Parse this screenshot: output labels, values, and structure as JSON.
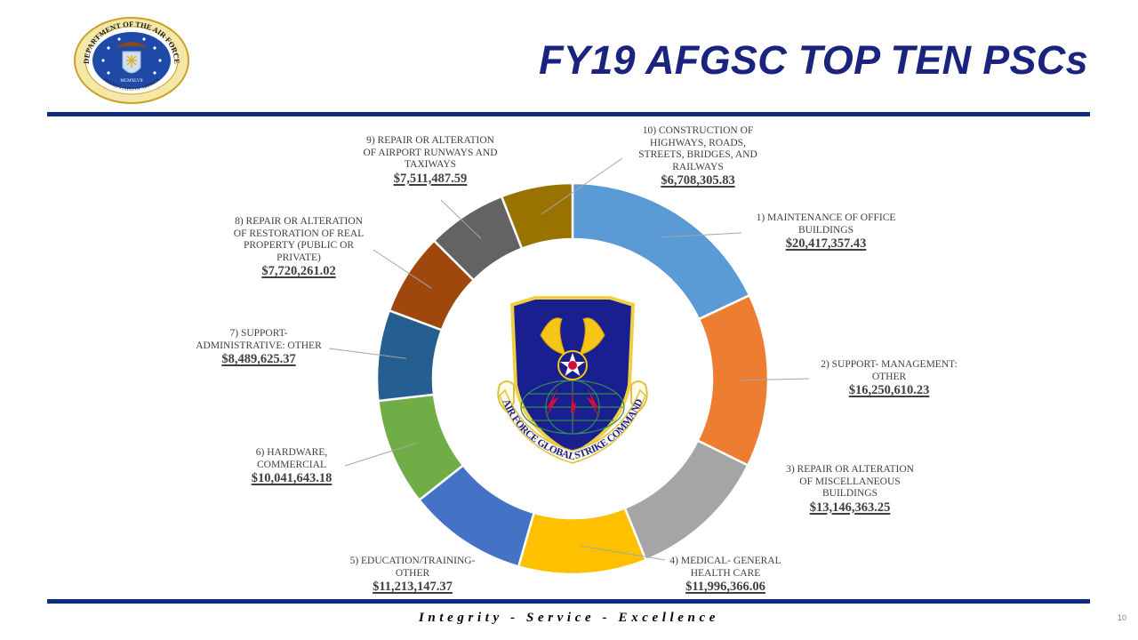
{
  "slide": {
    "title": "FY19 AFGSC TOP TEN PSCs",
    "motto": "Integrity - Service - Excellence",
    "page_number": "10",
    "seal_text": "DEPARTMENT OF THE AIR FORCE",
    "seal_bottom_text": "UNITED STATES OF AMERICA",
    "seal_year": "MCMXLVII",
    "emblem_text": "AIR FORCE GLOBAL STRIKE COMMAND",
    "colors": {
      "title": "#1a237e",
      "rule": "#0f2d7f"
    }
  },
  "chart_data": {
    "type": "pie",
    "subtype": "donut",
    "title": "FY19 AFGSC TOP TEN PSCs",
    "start_angle_deg": 0,
    "direction": "clockwise",
    "categories": [
      "1) MAINTENANCE OF OFFICE BUILDINGS",
      "2) SUPPORT- MANAGEMENT: OTHER",
      "3) REPAIR OR ALTERATION OF MISCELLANEOUS BUILDINGS",
      "4) MEDICAL- GENERAL HEALTH CARE",
      "5) EDUCATION/TRAINING- OTHER",
      "6) HARDWARE, COMMERCIAL",
      "7) SUPPORT- ADMINISTRATIVE: OTHER",
      "8) REPAIR OR ALTERATION OF RESTORATION OF REAL PROPERTY (PUBLIC OR PRIVATE)",
      "9) REPAIR OR ALTERATION OF AIRPORT RUNWAYS AND TAXIWAYS",
      "10) CONSTRUCTION OF HIGHWAYS, ROADS, STREETS, BRIDGES, AND RAILWAYS"
    ],
    "values": [
      20417357.43,
      16250610.23,
      13146363.25,
      11996366.06,
      11213147.37,
      10041643.18,
      8489625.37,
      7720261.02,
      7511487.59,
      6708305.83
    ],
    "value_labels": [
      "$20,417,357.43",
      "$16,250,610.23",
      "$13,146,363.25",
      "$11,996,366.06",
      "$11,213,147.37",
      "$10,041,643.18",
      "$8,489,625.37",
      "$7,720,261.02",
      "$7,511,487.59",
      "$6,708,305.83"
    ],
    "colors": [
      "#5b9bd5",
      "#ed7d31",
      "#a5a5a5",
      "#ffc000",
      "#4472c4",
      "#70ad47",
      "#255e91",
      "#9e480e",
      "#636363",
      "#997300"
    ],
    "legend": "none (data labels with leader lines)",
    "center": [
      644,
      426
    ],
    "outer_radius": 220,
    "inner_radius": 157
  },
  "labels": [
    {
      "name_lines": [
        "1) MAINTENANCE OF OFFICE",
        "BUILDINGS"
      ],
      "amount": "$20,417,357.43"
    },
    {
      "name_lines": [
        "2) SUPPORT- MANAGEMENT:",
        "OTHER"
      ],
      "amount": "$16,250,610.23"
    },
    {
      "name_lines": [
        "3) REPAIR OR ALTERATION",
        "OF MISCELLANEOUS",
        "BUILDINGS"
      ],
      "amount": "$13,146,363.25"
    },
    {
      "name_lines": [
        "4) MEDICAL- GENERAL",
        "HEALTH CARE"
      ],
      "amount": "$11,996,366.06"
    },
    {
      "name_lines": [
        "5) EDUCATION/TRAINING-",
        "OTHER"
      ],
      "amount": "$11,213,147.37"
    },
    {
      "name_lines": [
        "6) HARDWARE,",
        "COMMERCIAL"
      ],
      "amount": "$10,041,643.18"
    },
    {
      "name_lines": [
        "7) SUPPORT-",
        "ADMINISTRATIVE: OTHER"
      ],
      "amount": "$8,489,625.37"
    },
    {
      "name_lines": [
        "8) REPAIR OR ALTERATION",
        "OF RESTORATION OF REAL",
        "PROPERTY (PUBLIC OR",
        "PRIVATE)"
      ],
      "amount": "$7,720,261.02"
    },
    {
      "name_lines": [
        "9) REPAIR OR ALTERATION",
        "OF AIRPORT RUNWAYS AND",
        "TAXIWAYS"
      ],
      "amount": "$7,511,487.59"
    },
    {
      "name_lines": [
        "10) CONSTRUCTION OF",
        "HIGHWAYS, ROADS,",
        "STREETS, BRIDGES, AND",
        "RAILWAYS"
      ],
      "amount": "$6,708,305.83"
    }
  ]
}
